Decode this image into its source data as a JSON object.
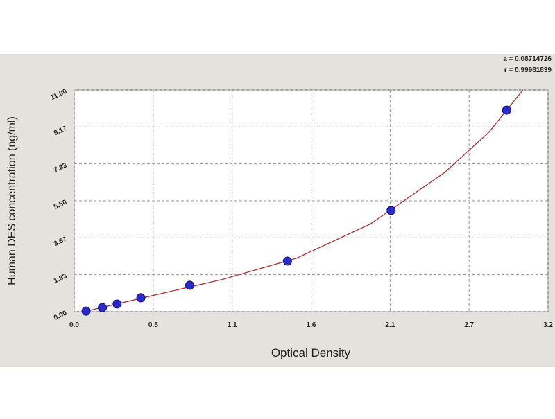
{
  "chart_data": {
    "type": "scatter",
    "annotations": [
      "a = 0.08714726",
      "r = 0.99981839"
    ],
    "xlabel": "Optical Density",
    "ylabel": "Human DES concentration (ng/ml)",
    "xlim": [
      0,
      3.2
    ],
    "ylim": [
      0,
      11
    ],
    "xticks": [
      {
        "value": 0,
        "label": "0.0"
      },
      {
        "value": 0.5333,
        "label": "0.5"
      },
      {
        "value": 1.0667,
        "label": "1.1"
      },
      1.6,
      {
        "value": 2.1333,
        "label": "2.1"
      },
      {
        "value": 2.6667,
        "label": "2.7"
      },
      3.2
    ],
    "yticks": [
      {
        "value": 0,
        "label": "0.00"
      },
      {
        "value": 1.8333,
        "label": "1.83"
      },
      {
        "value": 3.6667,
        "label": "3.67"
      },
      {
        "value": 5.5,
        "label": "5.50"
      },
      {
        "value": 7.3333,
        "label": "7.33"
      },
      {
        "value": 9.1667,
        "label": "9.17"
      },
      {
        "value": 11,
        "label": "11.00"
      }
    ],
    "grid": true,
    "points": {
      "color": "#2a2ad0",
      "x": [
        0.08,
        0.19,
        0.29,
        0.45,
        0.78,
        1.44,
        2.14,
        2.92
      ],
      "y": [
        0.03,
        0.2,
        0.38,
        0.69,
        1.31,
        2.51,
        5.02,
        10.0
      ]
    },
    "curve": {
      "color": "#b03030",
      "x": [
        0.08,
        0.5,
        1.0,
        1.5,
        2.0,
        2.5,
        2.8,
        3.03
      ],
      "y": [
        0.02,
        0.75,
        1.6,
        2.65,
        4.35,
        6.9,
        8.9,
        11
      ]
    }
  }
}
